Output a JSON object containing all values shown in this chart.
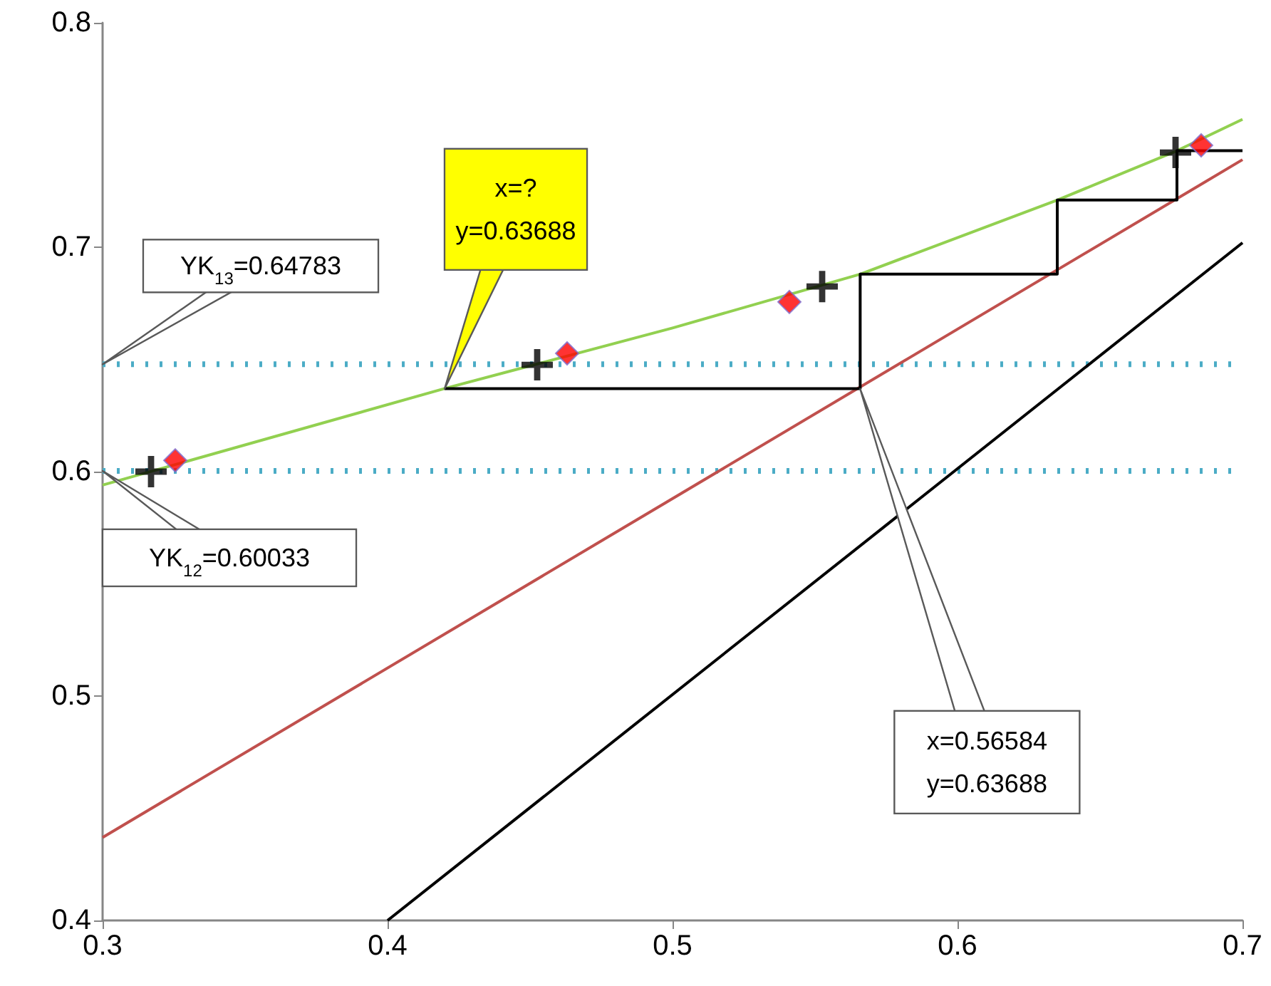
{
  "chart_data": {
    "type": "line",
    "xlim": [
      0.3,
      0.7
    ],
    "xticks": [
      0.3,
      0.4,
      0.5,
      0.6,
      0.7
    ],
    "ylim": [
      0.4,
      0.8
    ],
    "yticks": [
      0.4,
      0.5,
      0.6,
      0.7,
      0.8
    ],
    "grid": false,
    "series": [
      {
        "color": "#92d050",
        "marker": "none",
        "x": [
          0.3,
          0.42,
          0.4526,
          0.5,
          0.56584,
          0.635,
          0.677,
          0.7
        ],
        "values": [
          0.594,
          0.637,
          0.648,
          0.664,
          0.688,
          0.721,
          0.743,
          0.757
        ]
      },
      {
        "color": "#c0504d",
        "marker": "none",
        "x": [
          0.3,
          0.7
        ],
        "values": [
          0.437,
          0.739
        ]
      },
      {
        "color": "#000000",
        "marker": "none",
        "x": [
          0.4,
          0.7
        ],
        "values": [
          0.4,
          0.702
        ]
      },
      {
        "color": "#000000",
        "marker": "none",
        "x": [
          0.42,
          0.56584,
          0.56584,
          0.635,
          0.635,
          0.677,
          0.677,
          0.7
        ],
        "values": [
          0.637,
          0.637,
          0.688,
          0.688,
          0.721,
          0.721,
          0.743,
          0.743
        ]
      },
      {
        "type": "scatter",
        "color": "#000000",
        "marker": "cross",
        "x": [
          0.317,
          0.4525,
          0.5525,
          0.6765
        ],
        "values": [
          0.6,
          0.6476,
          0.6825,
          0.7422
        ]
      },
      {
        "type": "scatter",
        "color": "#ff0000",
        "marker": "diamond",
        "x": [
          0.3255,
          0.463,
          0.541,
          0.6855
        ],
        "values": [
          0.605,
          0.6527,
          0.6756,
          0.7454
        ]
      }
    ],
    "ref_lines": [
      {
        "axis": "y",
        "value": 0.64783,
        "label": "YK$_{13}$=0.64783",
        "color": "#4bacc6",
        "line_style": "dotted"
      },
      {
        "axis": "y",
        "value": 0.60033,
        "label": "YK$_{12}$=0.60033",
        "color": "#4bacc6",
        "line_style": "dotted"
      }
    ],
    "annotations": [
      {
        "text": "x=?\ny=0.63688",
        "x": 0.42,
        "y": 0.63688
      },
      {
        "text": "x=0.56584\ny=0.63688",
        "x": 0.56584,
        "y": 0.63688
      }
    ]
  }
}
